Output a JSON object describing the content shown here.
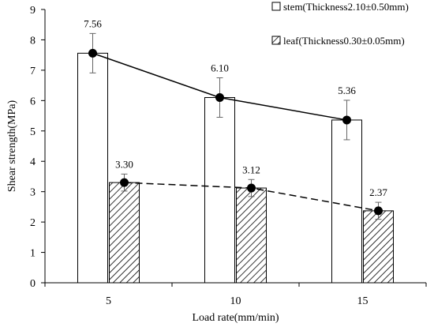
{
  "chart_data": {
    "type": "bar",
    "xlabel": "Load rate(mm/min)",
    "ylabel": "Shear strength(MPa)",
    "categories": [
      "5",
      "10",
      "15"
    ],
    "ylim": [
      0,
      9
    ],
    "yticks": [
      "0",
      "1",
      "2",
      "3",
      "4",
      "5",
      "6",
      "7",
      "8",
      "9"
    ],
    "grid": false,
    "legend_position": "top-right",
    "series": [
      {
        "name": "stem(Thickness2.10±0.50mm)",
        "values": [
          7.56,
          6.1,
          5.36
        ],
        "labels": [
          "7.56",
          "6.10",
          "5.36"
        ],
        "error": [
          0.65,
          0.65,
          0.65
        ],
        "fill": "white",
        "line_style": "solid"
      },
      {
        "name": "leaf(Thickness0.30±0.05mm)",
        "values": [
          3.3,
          3.12,
          2.37
        ],
        "labels": [
          "3.30",
          "3.12",
          "2.37"
        ],
        "error": [
          0.28,
          0.28,
          0.28
        ],
        "fill": "hatched",
        "line_style": "dashed"
      }
    ]
  }
}
